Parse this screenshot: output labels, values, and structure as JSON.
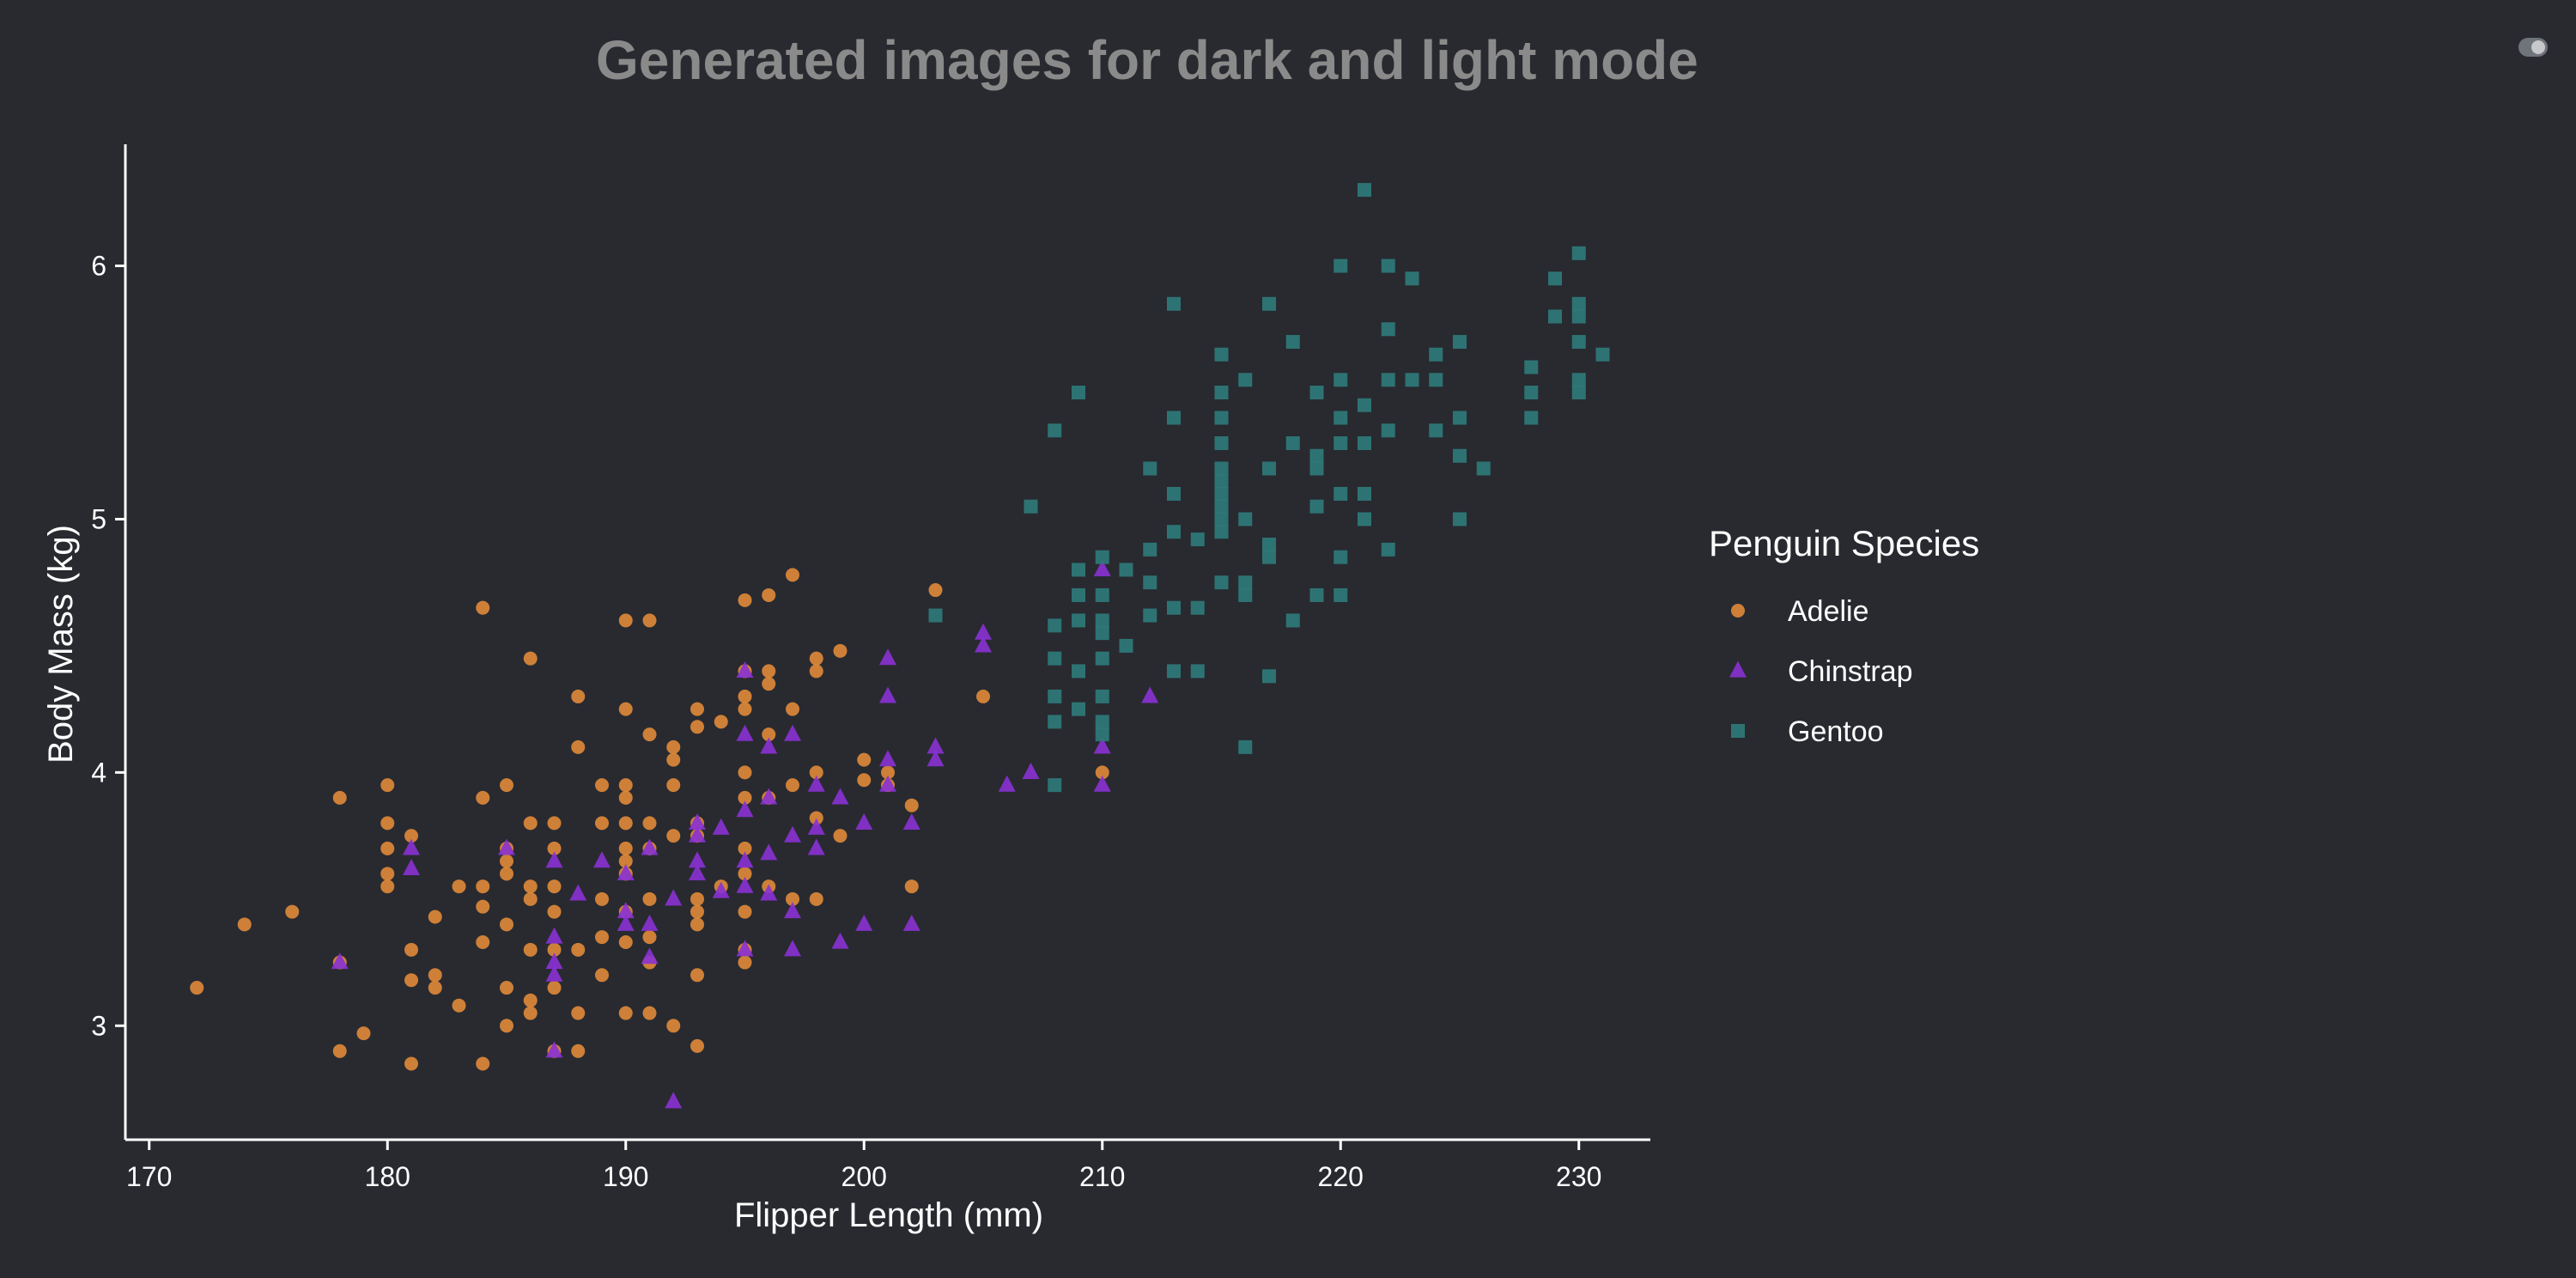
{
  "page": {
    "title": "Generated images for dark and light mode",
    "theme_toggle": "toggle-icon"
  },
  "colors": {
    "background": "#282a30",
    "title": "#8a8a8a",
    "axis": "#ffffff",
    "adelie": "#e08a3a",
    "chinstrap": "#8a31d4",
    "gentoo": "#2f7b7b"
  },
  "chart_data": {
    "type": "scatter",
    "title": "",
    "xlabel": "Flipper Length (mm)",
    "ylabel": "Body Mass (kg)",
    "xlim": [
      169,
      233
    ],
    "ylim": [
      2.55,
      6.48
    ],
    "xticks": [
      170,
      180,
      190,
      200,
      210,
      220,
      230
    ],
    "yticks": [
      3,
      4,
      5,
      6
    ],
    "grid": false,
    "legend": {
      "title": "Penguin Species",
      "placement": "right"
    },
    "series": [
      {
        "name": "Adelie",
        "marker": "circle",
        "color": "#e08a3a",
        "points": [
          [
            172,
            3.15
          ],
          [
            174,
            3.4
          ],
          [
            176,
            3.45
          ],
          [
            178,
            2.9
          ],
          [
            178,
            3.9
          ],
          [
            178,
            3.25
          ],
          [
            179,
            2.97
          ],
          [
            180,
            3.95
          ],
          [
            180,
            3.8
          ],
          [
            180,
            3.7
          ],
          [
            180,
            3.6
          ],
          [
            180,
            3.55
          ],
          [
            181,
            3.3
          ],
          [
            181,
            3.18
          ],
          [
            181,
            2.85
          ],
          [
            181,
            3.75
          ],
          [
            182,
            3.43
          ],
          [
            182,
            3.2
          ],
          [
            182,
            3.15
          ],
          [
            183,
            3.08
          ],
          [
            183,
            3.55
          ],
          [
            184,
            4.65
          ],
          [
            184,
            3.9
          ],
          [
            184,
            3.55
          ],
          [
            184,
            3.47
          ],
          [
            184,
            3.33
          ],
          [
            184,
            2.85
          ],
          [
            185,
            3.95
          ],
          [
            185,
            3.7
          ],
          [
            185,
            3.65
          ],
          [
            185,
            3.6
          ],
          [
            185,
            3.4
          ],
          [
            185,
            3.15
          ],
          [
            185,
            3.0
          ],
          [
            186,
            4.45
          ],
          [
            186,
            3.8
          ],
          [
            186,
            3.55
          ],
          [
            186,
            3.5
          ],
          [
            186,
            3.3
          ],
          [
            186,
            3.1
          ],
          [
            186,
            3.05
          ],
          [
            187,
            3.8
          ],
          [
            187,
            3.7
          ],
          [
            187,
            3.55
          ],
          [
            187,
            3.45
          ],
          [
            187,
            3.3
          ],
          [
            187,
            3.15
          ],
          [
            187,
            2.9
          ],
          [
            188,
            4.3
          ],
          [
            188,
            4.1
          ],
          [
            188,
            3.3
          ],
          [
            188,
            3.05
          ],
          [
            188,
            2.9
          ],
          [
            189,
            3.95
          ],
          [
            189,
            3.8
          ],
          [
            189,
            3.5
          ],
          [
            189,
            3.35
          ],
          [
            189,
            3.2
          ],
          [
            190,
            4.6
          ],
          [
            190,
            4.25
          ],
          [
            190,
            3.95
          ],
          [
            190,
            3.9
          ],
          [
            190,
            3.8
          ],
          [
            190,
            3.7
          ],
          [
            190,
            3.65
          ],
          [
            190,
            3.6
          ],
          [
            190,
            3.45
          ],
          [
            190,
            3.33
          ],
          [
            190,
            3.05
          ],
          [
            191,
            4.6
          ],
          [
            191,
            4.15
          ],
          [
            191,
            3.8
          ],
          [
            191,
            3.7
          ],
          [
            191,
            3.5
          ],
          [
            191,
            3.35
          ],
          [
            191,
            3.25
          ],
          [
            191,
            3.05
          ],
          [
            192,
            4.1
          ],
          [
            192,
            4.05
          ],
          [
            192,
            3.95
          ],
          [
            192,
            3.75
          ],
          [
            192,
            3.0
          ],
          [
            193,
            4.25
          ],
          [
            193,
            4.18
          ],
          [
            193,
            3.8
          ],
          [
            193,
            3.75
          ],
          [
            193,
            3.5
          ],
          [
            193,
            3.45
          ],
          [
            193,
            3.4
          ],
          [
            193,
            3.2
          ],
          [
            193,
            2.92
          ],
          [
            194,
            4.2
          ],
          [
            194,
            3.55
          ],
          [
            195,
            4.68
          ],
          [
            195,
            4.4
          ],
          [
            195,
            4.3
          ],
          [
            195,
            4.25
          ],
          [
            195,
            4.0
          ],
          [
            195,
            3.9
          ],
          [
            195,
            3.7
          ],
          [
            195,
            3.6
          ],
          [
            195,
            3.45
          ],
          [
            195,
            3.3
          ],
          [
            195,
            3.25
          ],
          [
            196,
            4.7
          ],
          [
            196,
            4.4
          ],
          [
            196,
            4.35
          ],
          [
            196,
            4.15
          ],
          [
            196,
            3.9
          ],
          [
            196,
            3.55
          ],
          [
            197,
            4.78
          ],
          [
            197,
            4.25
          ],
          [
            197,
            3.95
          ],
          [
            197,
            3.5
          ],
          [
            198,
            4.45
          ],
          [
            198,
            4.4
          ],
          [
            198,
            4.0
          ],
          [
            198,
            3.82
          ],
          [
            198,
            3.5
          ],
          [
            199,
            4.48
          ],
          [
            199,
            3.75
          ],
          [
            200,
            4.05
          ],
          [
            200,
            3.97
          ],
          [
            201,
            3.95
          ],
          [
            201,
            4.0
          ],
          [
            202,
            3.87
          ],
          [
            202,
            3.55
          ],
          [
            203,
            4.72
          ],
          [
            205,
            4.3
          ],
          [
            210,
            4.0
          ]
        ]
      },
      {
        "name": "Chinstrap",
        "marker": "triangle",
        "color": "#8a31d4",
        "points": [
          [
            178,
            3.25
          ],
          [
            181,
            3.7
          ],
          [
            181,
            3.62
          ],
          [
            185,
            3.7
          ],
          [
            187,
            3.65
          ],
          [
            187,
            3.35
          ],
          [
            187,
            3.25
          ],
          [
            187,
            3.2
          ],
          [
            187,
            2.9
          ],
          [
            188,
            3.52
          ],
          [
            189,
            3.65
          ],
          [
            190,
            3.6
          ],
          [
            190,
            3.45
          ],
          [
            190,
            3.4
          ],
          [
            191,
            3.7
          ],
          [
            191,
            3.4
          ],
          [
            191,
            3.27
          ],
          [
            192,
            3.5
          ],
          [
            192,
            2.7
          ],
          [
            193,
            3.8
          ],
          [
            193,
            3.75
          ],
          [
            193,
            3.65
          ],
          [
            193,
            3.6
          ],
          [
            194,
            3.78
          ],
          [
            194,
            3.53
          ],
          [
            195,
            4.4
          ],
          [
            195,
            4.15
          ],
          [
            195,
            3.85
          ],
          [
            195,
            3.65
          ],
          [
            195,
            3.55
          ],
          [
            195,
            3.3
          ],
          [
            196,
            4.1
          ],
          [
            196,
            3.9
          ],
          [
            196,
            3.68
          ],
          [
            196,
            3.52
          ],
          [
            197,
            4.15
          ],
          [
            197,
            3.75
          ],
          [
            197,
            3.45
          ],
          [
            197,
            3.3
          ],
          [
            198,
            3.95
          ],
          [
            198,
            3.78
          ],
          [
            198,
            3.7
          ],
          [
            199,
            3.9
          ],
          [
            199,
            3.33
          ],
          [
            200,
            3.8
          ],
          [
            200,
            3.4
          ],
          [
            201,
            4.45
          ],
          [
            201,
            4.3
          ],
          [
            201,
            4.05
          ],
          [
            201,
            3.95
          ],
          [
            202,
            3.8
          ],
          [
            202,
            3.4
          ],
          [
            203,
            4.1
          ],
          [
            203,
            4.05
          ],
          [
            205,
            4.55
          ],
          [
            205,
            4.5
          ],
          [
            206,
            3.95
          ],
          [
            207,
            4.0
          ],
          [
            210,
            4.8
          ],
          [
            210,
            4.1
          ],
          [
            210,
            3.95
          ],
          [
            212,
            4.3
          ]
        ]
      },
      {
        "name": "Gentoo",
        "marker": "square",
        "color": "#2f7b7b",
        "points": [
          [
            203,
            4.62
          ],
          [
            207,
            5.05
          ],
          [
            208,
            5.35
          ],
          [
            208,
            4.58
          ],
          [
            208,
            4.45
          ],
          [
            208,
            4.3
          ],
          [
            208,
            4.2
          ],
          [
            208,
            3.95
          ],
          [
            209,
            5.5
          ],
          [
            209,
            4.8
          ],
          [
            209,
            4.7
          ],
          [
            209,
            4.6
          ],
          [
            209,
            4.4
          ],
          [
            209,
            4.25
          ],
          [
            210,
            4.85
          ],
          [
            210,
            4.7
          ],
          [
            210,
            4.6
          ],
          [
            210,
            4.55
          ],
          [
            210,
            4.45
          ],
          [
            210,
            4.3
          ],
          [
            210,
            4.2
          ],
          [
            210,
            4.15
          ],
          [
            211,
            4.8
          ],
          [
            211,
            4.5
          ],
          [
            212,
            5.2
          ],
          [
            212,
            4.88
          ],
          [
            212,
            4.75
          ],
          [
            212,
            4.62
          ],
          [
            213,
            5.85
          ],
          [
            213,
            5.4
          ],
          [
            213,
            5.1
          ],
          [
            213,
            4.95
          ],
          [
            213,
            4.65
          ],
          [
            213,
            4.4
          ],
          [
            214,
            4.92
          ],
          [
            214,
            4.65
          ],
          [
            214,
            4.4
          ],
          [
            215,
            5.65
          ],
          [
            215,
            5.5
          ],
          [
            215,
            5.4
          ],
          [
            215,
            5.3
          ],
          [
            215,
            5.2
          ],
          [
            215,
            5.15
          ],
          [
            215,
            5.1
          ],
          [
            215,
            5.05
          ],
          [
            215,
            5.0
          ],
          [
            215,
            4.95
          ],
          [
            215,
            4.75
          ],
          [
            216,
            5.55
          ],
          [
            216,
            5.0
          ],
          [
            216,
            4.75
          ],
          [
            216,
            4.7
          ],
          [
            216,
            4.1
          ],
          [
            217,
            5.85
          ],
          [
            217,
            5.2
          ],
          [
            217,
            4.9
          ],
          [
            217,
            4.85
          ],
          [
            217,
            4.38
          ],
          [
            218,
            5.7
          ],
          [
            218,
            5.3
          ],
          [
            218,
            4.6
          ],
          [
            219,
            5.5
          ],
          [
            219,
            5.25
          ],
          [
            219,
            5.2
          ],
          [
            219,
            5.05
          ],
          [
            219,
            4.7
          ],
          [
            220,
            6.0
          ],
          [
            220,
            5.55
          ],
          [
            220,
            5.4
          ],
          [
            220,
            5.3
          ],
          [
            220,
            5.1
          ],
          [
            220,
            4.85
          ],
          [
            220,
            4.7
          ],
          [
            221,
            6.3
          ],
          [
            221,
            5.45
          ],
          [
            221,
            5.3
          ],
          [
            221,
            5.1
          ],
          [
            221,
            5.0
          ],
          [
            222,
            6.0
          ],
          [
            222,
            5.75
          ],
          [
            222,
            5.55
          ],
          [
            222,
            5.35
          ],
          [
            222,
            4.88
          ],
          [
            223,
            5.95
          ],
          [
            223,
            5.55
          ],
          [
            224,
            5.65
          ],
          [
            224,
            5.55
          ],
          [
            224,
            5.35
          ],
          [
            225,
            5.7
          ],
          [
            225,
            5.4
          ],
          [
            225,
            5.25
          ],
          [
            225,
            5.0
          ],
          [
            226,
            5.2
          ],
          [
            228,
            5.6
          ],
          [
            228,
            5.5
          ],
          [
            228,
            5.4
          ],
          [
            229,
            5.95
          ],
          [
            229,
            5.8
          ],
          [
            230,
            6.05
          ],
          [
            230,
            5.85
          ],
          [
            230,
            5.8
          ],
          [
            230,
            5.7
          ],
          [
            230,
            5.55
          ],
          [
            230,
            5.5
          ],
          [
            231,
            5.65
          ]
        ]
      }
    ]
  }
}
